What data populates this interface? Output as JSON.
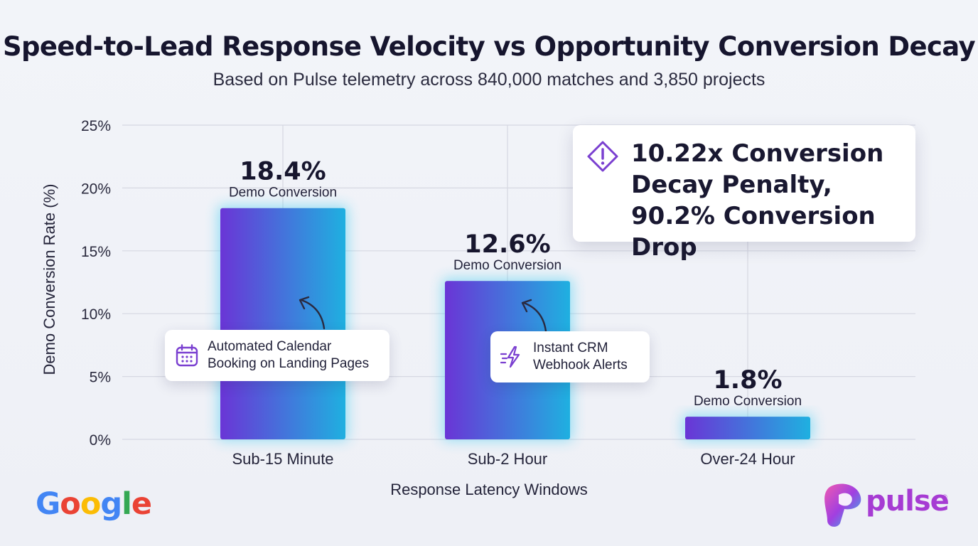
{
  "title": "Speed-to-Lead Response Velocity vs Opportunity Conversion Decay",
  "subtitle": "Based on Pulse telemetry across 840,000 matches and 3,850 projects",
  "chart_data": {
    "type": "bar",
    "xlabel": "Response Latency Windows",
    "ylabel": "Demo Conversion Rate (%)",
    "ylim": [
      0,
      25
    ],
    "y_ticks": [
      "0%",
      "5%",
      "10%",
      "15%",
      "20%",
      "25%"
    ],
    "grid": true,
    "categories": [
      "Sub-15 Minute",
      "Sub-2 Hour",
      "Over-24 Hour"
    ],
    "values": [
      18.4,
      12.6,
      1.8
    ],
    "value_labels": [
      "18.4%",
      "12.6%",
      "1.8%"
    ],
    "bar_sublabel": "Demo Conversion",
    "colors": {
      "bar_start": "#6a35d6",
      "bar_end": "#1fb0e0",
      "glow": "#2fc8f0"
    }
  },
  "annotations": {
    "calendar": {
      "icon": "calendar-icon",
      "text": "Automated Calendar\nBooking on Landing Pages"
    },
    "crm": {
      "icon": "lightning-speed-icon",
      "text": "Instant CRM\nWebhook Alerts"
    },
    "alert": {
      "icon": "warning-diamond-icon",
      "text": "10.22x Conversion Decay Penalty, 90.2% Conversion Drop"
    }
  },
  "logos": {
    "google": "Google",
    "pulse": "pulse",
    "pulse_mark": "®"
  },
  "colors": {
    "accent": "#7a3fd0",
    "text": "#1c1b33"
  }
}
